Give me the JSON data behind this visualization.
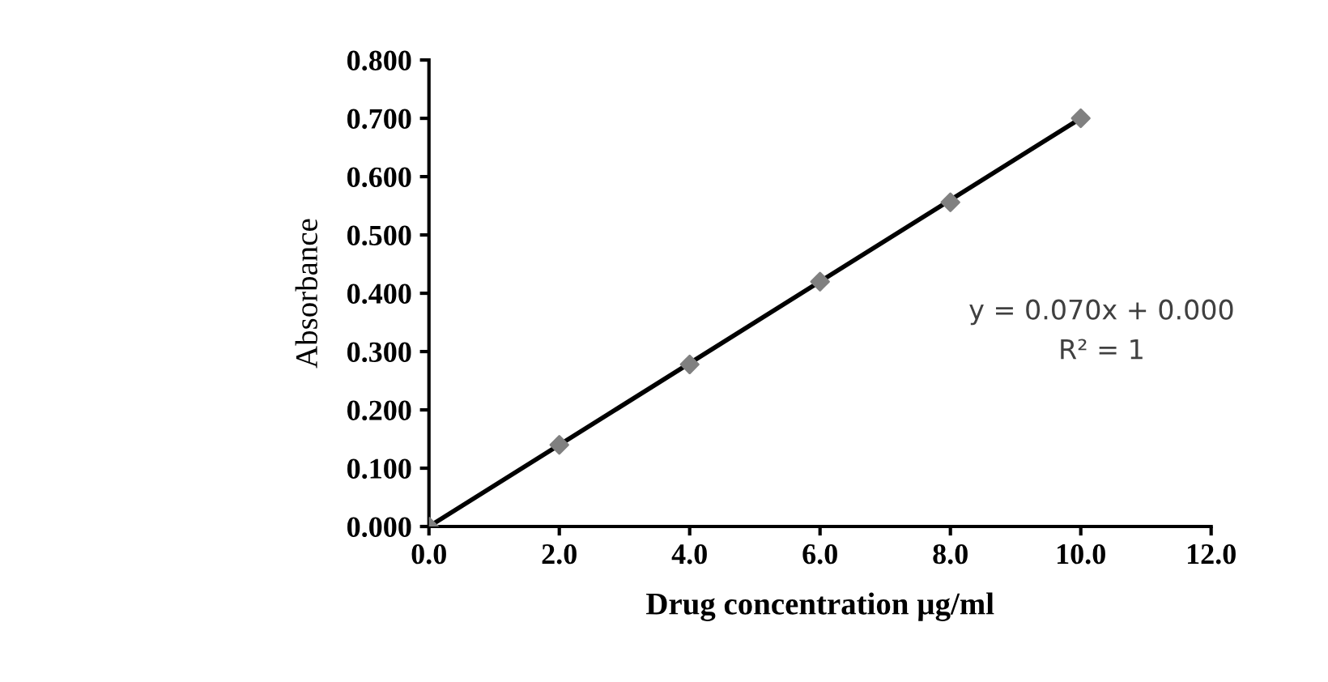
{
  "chart_data": {
    "type": "scatter",
    "xlabel": "Drug concentration µg/ml",
    "ylabel": "Absorbance",
    "x": [
      0,
      2,
      4,
      6,
      8,
      10
    ],
    "series": [
      {
        "color": "#808080",
        "marker": "diamond",
        "values": [
          0,
          0.14,
          0.278,
          0.42,
          0.556,
          0.7
        ]
      },
      {
        "type": "line",
        "color": "#000000",
        "marker": "none",
        "line_style": "solid",
        "x": [
          0,
          10
        ],
        "values": [
          0,
          0.7
        ]
      }
    ],
    "xlim": [
      0,
      12
    ],
    "xticks": [
      {
        "value": 0,
        "label": "0.0"
      },
      {
        "value": 2,
        "label": "2.0"
      },
      {
        "value": 4,
        "label": "4.0"
      },
      {
        "value": 6,
        "label": "6.0"
      },
      {
        "value": 8,
        "label": "8.0"
      },
      {
        "value": 10,
        "label": "10.0"
      },
      {
        "value": 12,
        "label": "12.0"
      }
    ],
    "ylim": [
      0,
      0.8
    ],
    "yticks": [
      {
        "value": 0,
        "label": "0.000"
      },
      {
        "value": 0.1,
        "label": "0.100"
      },
      {
        "value": 0.2,
        "label": "0.200"
      },
      {
        "value": 0.3,
        "label": "0.300"
      },
      {
        "value": 0.4,
        "label": "0.400"
      },
      {
        "value": 0.5,
        "label": "0.500"
      },
      {
        "value": 0.6,
        "label": "0.600"
      },
      {
        "value": 0.7,
        "label": "0.700"
      },
      {
        "value": 0.8,
        "label": "0.800"
      }
    ],
    "grid": false,
    "legend": false,
    "annotations": [
      "y = 0.070x + 0.000",
      "R² = 1"
    ]
  }
}
